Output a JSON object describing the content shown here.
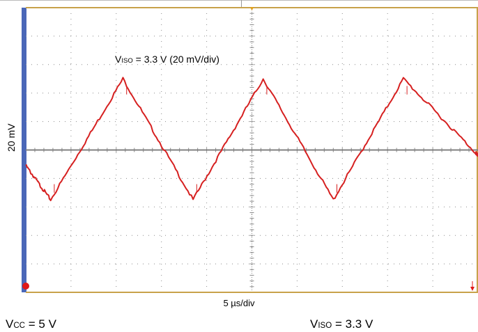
{
  "chart_data": {
    "type": "line",
    "title": "",
    "xlabel": "5 µs/div",
    "ylabel": "20 mV",
    "annotation": {
      "main": "V",
      "sub": "ISO",
      "rest": " = 3.3 V (20 mV/div)"
    },
    "x_divisions": 10,
    "y_divisions": 10,
    "grid": true,
    "xlim": [
      0,
      10
    ],
    "ylim": [
      -5,
      5
    ],
    "x_unit": "div",
    "y_unit": "div",
    "reference_level": 0,
    "series": [
      {
        "color": "#d62020",
        "shape": "triangle",
        "x": [
          0,
          0.55,
          2.15,
          3.7,
          5.25,
          6.8,
          8.35,
          9.95,
          10.0
        ],
        "y": [
          -0.55,
          -1.75,
          2.5,
          -1.75,
          2.5,
          -1.75,
          2.5,
          -0.1,
          -0.2
        ]
      }
    ],
    "notes": [
      {
        "main": "V",
        "sub": "CC",
        "rest": " = 5 V"
      },
      {
        "main": "V",
        "sub": "ISO",
        "rest": " = 3.3 V"
      }
    ],
    "colors": {
      "grid_border": "#c8a24a",
      "grid_dots": "#8a8a8a",
      "reference_line": "#808080",
      "left_bar": "#4a67b8",
      "trace": "#d62020"
    }
  }
}
